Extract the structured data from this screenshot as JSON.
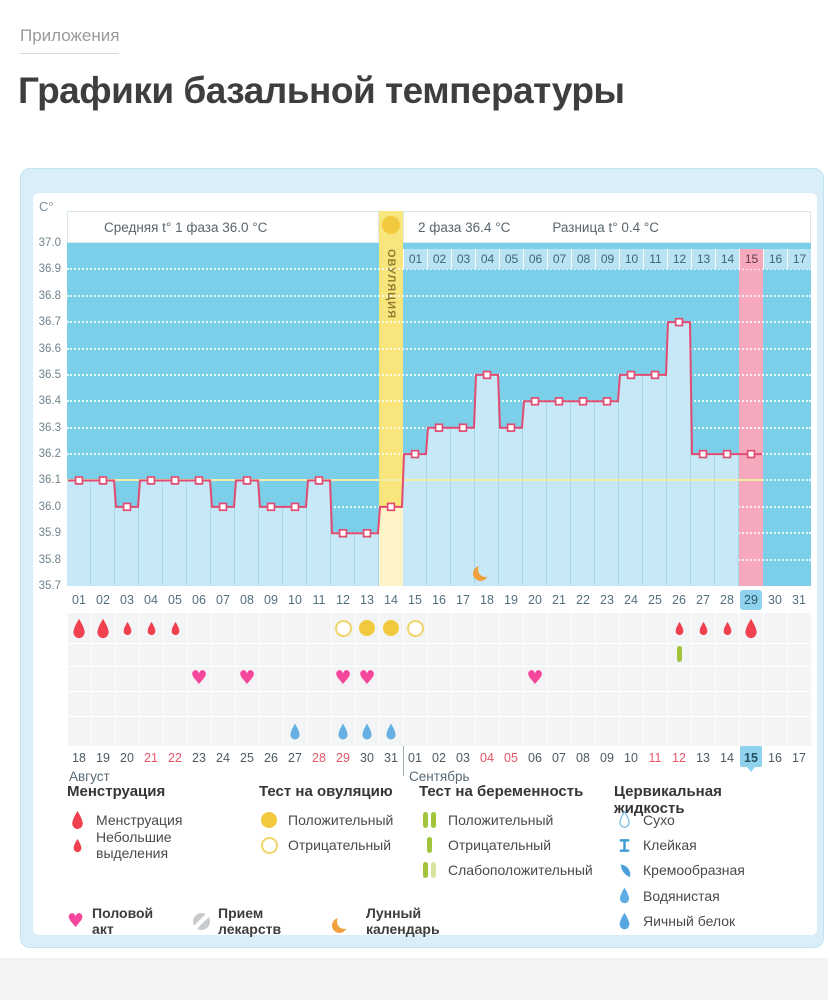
{
  "page": {
    "breadcrumb": "Приложения",
    "title": "Графики базальной температуры"
  },
  "panel_header": {
    "unit_label": "С°",
    "avg_phase1": "Средняя t° 1 фаза 36.0 °C",
    "phase2": "2 фаза 36.4 °C",
    "difference": "Разница t° 0.4 °C",
    "ovulation_label": "ОВУЛЯЦИЯ"
  },
  "chart_data": {
    "type": "line",
    "title": "Графики базальной температуры",
    "ylabel": "С°",
    "ylim": [
      35.7,
      37.0
    ],
    "y_ticks": [
      "37.0",
      "36.9",
      "36.8",
      "36.7",
      "36.6",
      "36.5",
      "36.4",
      "36.3",
      "36.2",
      "36.1",
      "36.0",
      "35.9",
      "35.8",
      "35.7"
    ],
    "x_cycle_days": [
      "01",
      "02",
      "03",
      "04",
      "05",
      "06",
      "07",
      "08",
      "09",
      "10",
      "11",
      "12",
      "13",
      "14",
      "15",
      "16",
      "17",
      "18",
      "19",
      "20",
      "21",
      "22",
      "23",
      "24",
      "25",
      "26",
      "27",
      "28",
      "29",
      "30",
      "31"
    ],
    "temperatures_by_cycle_day": [
      36.1,
      36.1,
      36.0,
      36.1,
      36.1,
      36.1,
      36.0,
      36.1,
      36.0,
      36.0,
      36.1,
      35.9,
      35.9,
      36.0,
      36.2,
      36.3,
      36.3,
      36.5,
      36.3,
      36.4,
      36.4,
      36.4,
      36.4,
      36.5,
      36.5,
      36.7,
      36.2,
      36.2,
      36.2,
      null,
      null
    ],
    "coverline": 36.1,
    "avg_phase1": 36.0,
    "avg_phase2": 36.4,
    "difference": 0.4,
    "ovulation_cycle_day": 14,
    "highlighted_cycle_day": 29,
    "september_strip": {
      "days": [
        "01",
        "02",
        "03",
        "04",
        "05",
        "06",
        "07",
        "08",
        "09",
        "10",
        "11",
        "12",
        "13",
        "14",
        "15",
        "16",
        "17"
      ],
      "highlight": "15",
      "start_cycle_day": 15
    },
    "markers": {
      "menstruation_heavy": [
        1,
        2,
        29
      ],
      "menstruation_light": [
        3,
        4,
        5,
        26,
        27,
        28
      ],
      "ovulation_test_positive": [
        13,
        14
      ],
      "ovulation_test_negative": [
        12,
        15
      ],
      "pregnancy_test_negative": [
        26
      ],
      "intercourse": [
        6,
        8,
        12,
        13,
        20
      ],
      "cervical_egg_white": [
        10,
        12,
        13,
        14
      ],
      "lunar": [
        18
      ]
    },
    "calendar": {
      "august": {
        "label": "Август",
        "days": [
          "18",
          "19",
          "20",
          "21",
          "22",
          "23",
          "24",
          "25",
          "26",
          "27",
          "28",
          "29",
          "30",
          "31"
        ],
        "red_days": [
          "21",
          "22",
          "28",
          "29"
        ]
      },
      "september": {
        "label": "Сентябрь",
        "days": [
          "01",
          "02",
          "03",
          "04",
          "05",
          "06",
          "07",
          "08",
          "09",
          "10",
          "11",
          "12",
          "13",
          "14",
          "15",
          "16",
          "17"
        ],
        "red_days": [
          "04",
          "05",
          "11",
          "12"
        ],
        "today": "15"
      }
    }
  },
  "legend": {
    "columns": [
      {
        "title": "Менструация",
        "items": [
          {
            "icon": "drop-big",
            "label": "Менструация"
          },
          {
            "icon": "drop-small",
            "label": "Небольшие выделения"
          }
        ]
      },
      {
        "title": "Тест на овуляцию",
        "items": [
          {
            "icon": "circle-filled",
            "label": "Положительный"
          },
          {
            "icon": "circle-outline",
            "label": "Отрицательный"
          }
        ]
      },
      {
        "title": "Тест на беременность",
        "items": [
          {
            "icon": "bars-positive",
            "label": "Положительный"
          },
          {
            "icon": "bar-negative",
            "label": "Отрицательный"
          },
          {
            "icon": "bars-weak",
            "label": "Слабоположительный"
          }
        ]
      },
      {
        "title": "Цервикальная жидкость",
        "items": [
          {
            "icon": "drop-outline",
            "label": "Сухо"
          },
          {
            "icon": "sticky",
            "label": "Клейкая"
          },
          {
            "icon": "creamy",
            "label": "Кремообразная"
          },
          {
            "icon": "drop-watery",
            "label": "Водянистая"
          },
          {
            "icon": "drop-eggwhite",
            "label": "Яичный белок"
          }
        ]
      }
    ],
    "bottom": [
      {
        "icon": "heart",
        "label": "Половой акт"
      },
      {
        "icon": "pill",
        "label": "Прием лекарств"
      },
      {
        "icon": "moon",
        "label": "Лунный календарь"
      }
    ]
  },
  "colors": {
    "line": "#E14B72",
    "plot_bg": "#7CCFE9",
    "fill_below_line": "#C7E9F7",
    "ovulation_band": "#F8E67C",
    "ovulation_band_light": "#FDF5C9",
    "pink_column": "#F6A9BD",
    "coverline": "#F1EDA6",
    "menstruation": "#F0414E",
    "ovulation_test": "#F2C93E",
    "pregnancy_test": "#A2C43C",
    "intercourse": "#F4479B",
    "cervical": "#57A7E2",
    "moon": "#F0A03C",
    "highlight_blue": "#8ED2EE",
    "red_date": "#E45568"
  }
}
